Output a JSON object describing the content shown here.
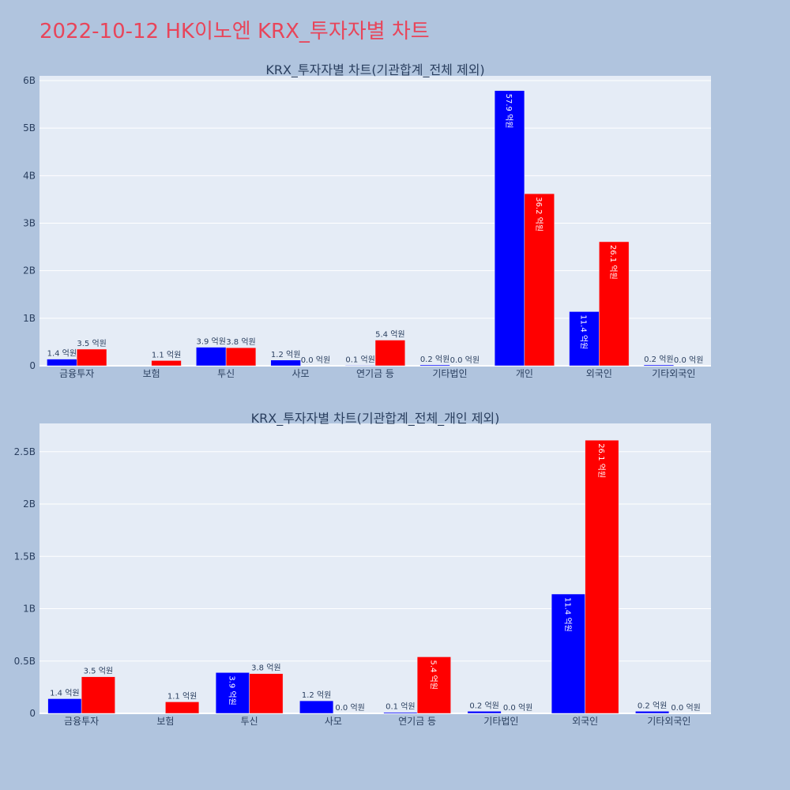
{
  "page_title": "2022-10-12 HK이노엔 KRX_투자자별 차트",
  "colors": {
    "background": "#b0c4de",
    "plot_bg": "#e5ecf6",
    "title": "#e8455a",
    "text": "#2a3f5f",
    "grid": "#ffffff",
    "buy": "#0000ff",
    "sell": "#ff0000"
  },
  "chart_data": [
    {
      "type": "bar",
      "title": "KRX_투자자별 차트(기관합계_전체 제외)",
      "categories": [
        "금융투자",
        "보험",
        "투신",
        "사모",
        "연기금 등",
        "기타법인",
        "개인",
        "외국인",
        "기타외국인"
      ],
      "series": [
        {
          "color": "#0000ff",
          "values": [
            140000000,
            0,
            390000000,
            120000000,
            10000000,
            20000000,
            5790000000,
            1140000000,
            20000000
          ],
          "labels": [
            "1.4 억원",
            "",
            "3.9 억원",
            "1.2 억원",
            "0.1 억원",
            "0.2 억원",
            "57.9 억원",
            "11.4 억원",
            "0.2 억원"
          ]
        },
        {
          "color": "#ff0000",
          "values": [
            350000000,
            110000000,
            380000000,
            0,
            540000000,
            0,
            3620000000,
            2610000000,
            0
          ],
          "labels": [
            "3.5 억원",
            "1.1 억원",
            "3.8 억원",
            "0.0 억원",
            "5.4 억원",
            "0.0 억원",
            "36.2 억원",
            "26.1 억원",
            "0.0 억원"
          ]
        }
      ],
      "ylim": [
        0,
        6100000000
      ],
      "yticks": [
        0,
        1000000000,
        2000000000,
        3000000000,
        4000000000,
        5000000000,
        6000000000
      ],
      "yticklabels": [
        "0",
        "1B",
        "2B",
        "3B",
        "4B",
        "5B",
        "6B"
      ],
      "grid": true,
      "legend": "none"
    },
    {
      "type": "bar",
      "title": "KRX_투자자별 차트(기관합계_전체_개인 제외)",
      "categories": [
        "금융투자",
        "보험",
        "투신",
        "사모",
        "연기금 등",
        "기타법인",
        "외국인",
        "기타외국인"
      ],
      "series": [
        {
          "color": "#0000ff",
          "values": [
            140000000,
            0,
            390000000,
            120000000,
            10000000,
            20000000,
            1140000000,
            20000000
          ],
          "labels": [
            "1.4 억원",
            "",
            "3.9 억원",
            "1.2 억원",
            "0.1 억원",
            "0.2 억원",
            "11.4 억원",
            "0.2 억원"
          ]
        },
        {
          "color": "#ff0000",
          "values": [
            350000000,
            110000000,
            380000000,
            0,
            540000000,
            0,
            2610000000,
            0
          ],
          "labels": [
            "3.5 억원",
            "1.1 억원",
            "3.8 억원",
            "0.0 억원",
            "5.4 억원",
            "0.0 억원",
            "26.1 억원",
            "0.0 억원"
          ]
        }
      ],
      "ylim": [
        0,
        2770000000
      ],
      "yticks": [
        0,
        500000000,
        1000000000,
        1500000000,
        2000000000,
        2500000000
      ],
      "yticklabels": [
        "0",
        "0.5B",
        "1B",
        "1.5B",
        "2B",
        "2.5B"
      ],
      "grid": true,
      "legend": "none"
    }
  ]
}
